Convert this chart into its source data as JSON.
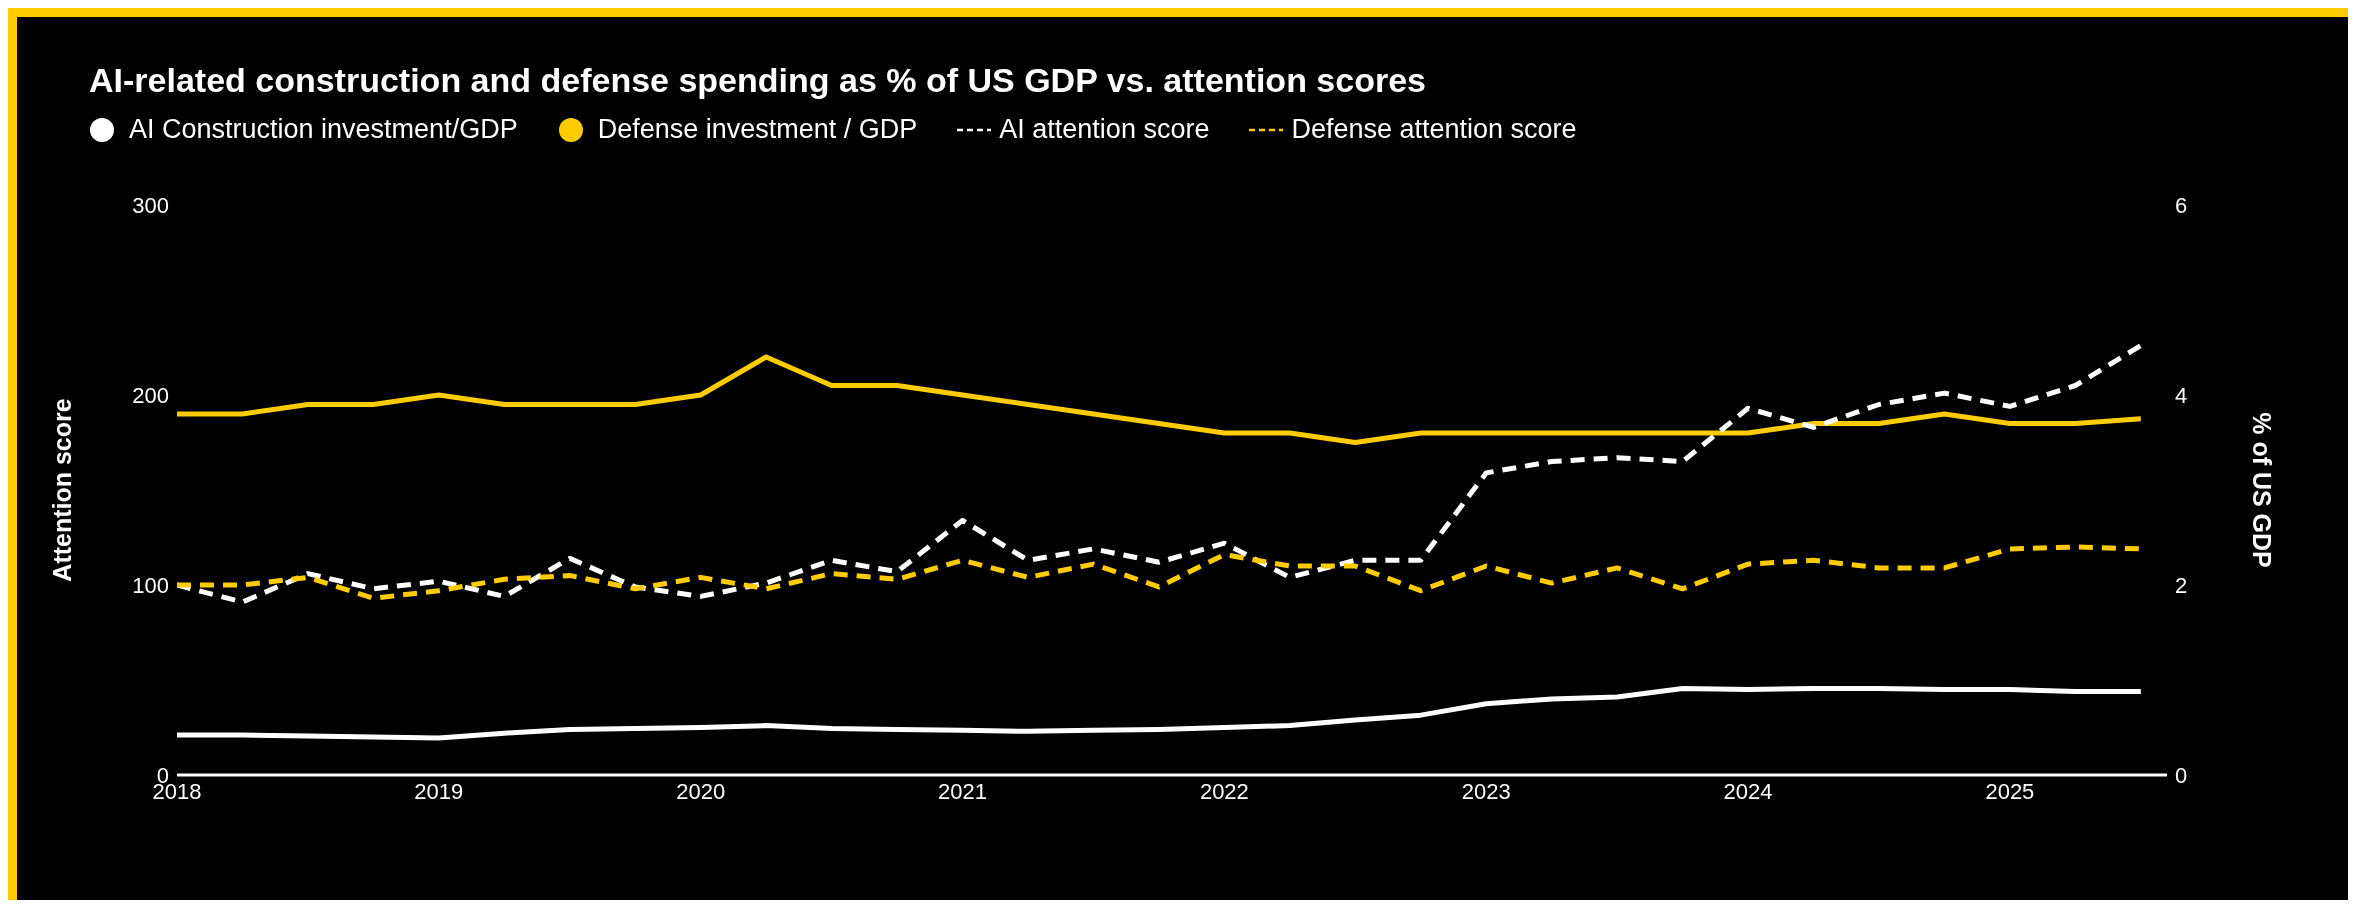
{
  "chart_data": {
    "type": "line",
    "title": "AI-related construction and defense spending as % of US GDP vs. attention scores",
    "ylabel": "Attention score",
    "y2label": "% of US GDP",
    "legend": "top left",
    "grid": false,
    "x": [
      2018,
      2018.25,
      2018.5,
      2018.75,
      2019,
      2019.25,
      2019.5,
      2019.75,
      2020,
      2020.25,
      2020.5,
      2020.75,
      2021,
      2021.25,
      2021.5,
      2021.75,
      2022,
      2022.25,
      2022.5,
      2022.75,
      2023,
      2023.25,
      2023.5,
      2023.75,
      2024,
      2024.25,
      2024.5,
      2024.75,
      2025,
      2025.25,
      2025.5
    ],
    "xlim": [
      2018,
      2025.6
    ],
    "xticks": [
      2018,
      2019,
      2020,
      2021,
      2022,
      2023,
      2024,
      2025
    ],
    "ylim": [
      0,
      300
    ],
    "yticks": [
      0,
      100,
      200,
      300
    ],
    "y2lim": [
      0,
      6
    ],
    "y2ticks": [
      0,
      2,
      4,
      6
    ],
    "series": [
      {
        "name": "AI Construction investment/GDP",
        "color": "#ffffff",
        "axis": "y2",
        "line_style": "solid",
        "values": [
          0.42,
          0.42,
          0.41,
          0.4,
          0.39,
          0.44,
          0.48,
          0.49,
          0.5,
          0.52,
          0.49,
          0.48,
          0.47,
          0.46,
          0.47,
          0.48,
          0.5,
          0.52,
          0.58,
          0.63,
          0.75,
          0.8,
          0.82,
          0.91,
          0.9,
          0.91,
          0.91,
          0.9,
          0.9,
          0.88,
          0.88
        ]
      },
      {
        "name": "Defense investment / GDP",
        "color": "#ffcc00",
        "axis": "y2",
        "line_style": "solid",
        "values": [
          3.8,
          3.8,
          3.9,
          3.9,
          4.0,
          3.9,
          3.9,
          3.9,
          4.0,
          4.4,
          4.1,
          4.1,
          4.0,
          3.9,
          3.8,
          3.7,
          3.6,
          3.6,
          3.5,
          3.6,
          3.6,
          3.6,
          3.6,
          3.6,
          3.6,
          3.7,
          3.7,
          3.8,
          3.7,
          3.7,
          3.75
        ]
      },
      {
        "name": "AI attention score",
        "color": "#ffffff",
        "line_style": "dashed",
        "values": [
          100,
          91,
          106,
          98,
          102,
          94,
          114,
          99,
          94,
          101,
          113,
          107,
          134,
          113,
          119,
          112,
          122,
          104,
          113,
          113,
          159,
          165,
          167,
          165,
          193,
          183,
          195,
          201,
          194,
          205,
          226
        ]
      },
      {
        "name": "Defense attention score",
        "color": "#ffcc00",
        "line_style": "dashed",
        "values": [
          100,
          100,
          104,
          93,
          97,
          103,
          105,
          98,
          104,
          98,
          106,
          103,
          113,
          104,
          111,
          99,
          116,
          110,
          110,
          97,
          110,
          101,
          109,
          98,
          111,
          113,
          109,
          109,
          119,
          120,
          119
        ]
      }
    ]
  }
}
